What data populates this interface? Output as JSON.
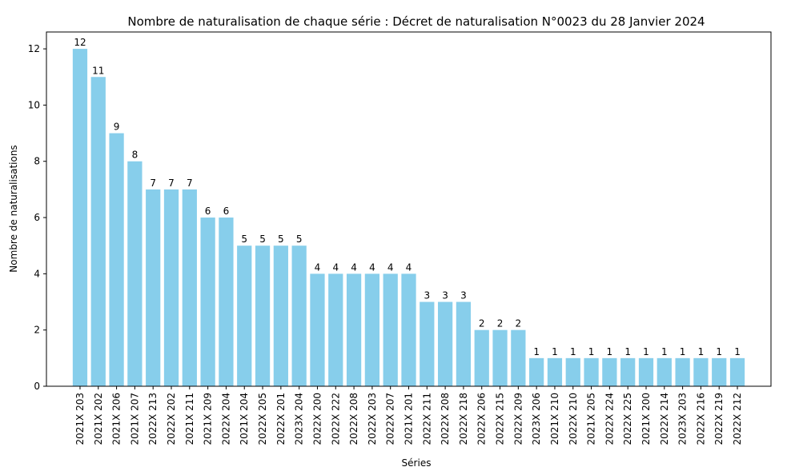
{
  "chart_data": {
    "type": "bar",
    "title": "Nombre de naturalisation de chaque série : Décret de naturalisation N°0023 du 28 Janvier 2024",
    "xlabel": "Séries",
    "ylabel": "Nombre de naturalisations",
    "ylim": [
      0,
      12.6
    ],
    "yticks": [
      0,
      2,
      4,
      6,
      8,
      10,
      12
    ],
    "grid": false,
    "bar_color": "#87CEEB",
    "categories": [
      "2021X 203",
      "2021X 202",
      "2021X 206",
      "2021X 207",
      "2022X 213",
      "2022X 202",
      "2021X 211",
      "2021X 209",
      "2022X 204",
      "2021X 204",
      "2022X 205",
      "2022X 201",
      "2023X 204",
      "2022X 200",
      "2022X 222",
      "2022X 208",
      "2022X 203",
      "2022X 207",
      "2021X 201",
      "2022X 211",
      "2022X 208",
      "2022X 218",
      "2022X 206",
      "2022X 215",
      "2022X 209",
      "2023X 206",
      "2021X 210",
      "2022X 210",
      "2021X 205",
      "2022X 224",
      "2022X 225",
      "2021X 200",
      "2022X 214",
      "2023X 203",
      "2022X 216",
      "2022X 219",
      "2022X 212"
    ],
    "values": [
      12,
      11,
      9,
      8,
      7,
      7,
      7,
      6,
      6,
      5,
      5,
      5,
      5,
      4,
      4,
      4,
      4,
      4,
      4,
      3,
      3,
      3,
      2,
      2,
      2,
      1,
      1,
      1,
      1,
      1,
      1,
      1,
      1,
      1,
      1,
      1,
      1
    ]
  }
}
